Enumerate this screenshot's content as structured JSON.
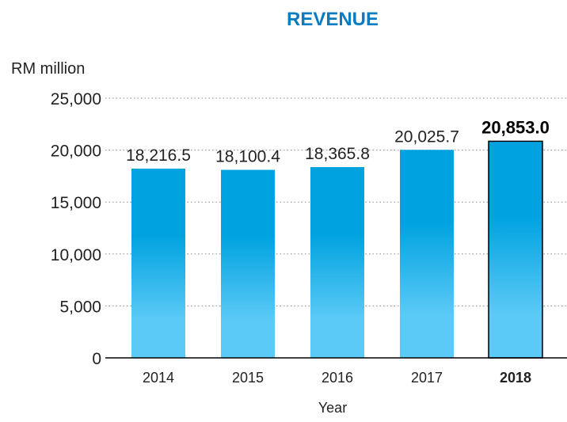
{
  "chart_data": {
    "type": "bar",
    "title": "REVENUE",
    "ylabel": "RM million",
    "xlabel": "Year",
    "categories": [
      "2014",
      "2015",
      "2016",
      "2017",
      "2018"
    ],
    "values": [
      18216.5,
      18100.4,
      18365.8,
      20025.7,
      20853.0
    ],
    "data_labels": [
      "18,216.5",
      "18,100.4",
      "18,365.8",
      "20,025.7",
      "20,853.0"
    ],
    "highlighted_category": "2018",
    "ylim": [
      0,
      25000
    ],
    "yticks": [
      0,
      5000,
      10000,
      15000,
      20000,
      25000
    ],
    "ytick_labels": [
      "0",
      "5,000",
      "10,000",
      "15,000",
      "20,000",
      "25,000"
    ],
    "grid": true,
    "legend": "none",
    "colors": {
      "title": "#0a7dc2",
      "bar_top": "#00a3e0",
      "bar_bottom": "#5ccaf6",
      "highlight_border": "#000000"
    }
  }
}
